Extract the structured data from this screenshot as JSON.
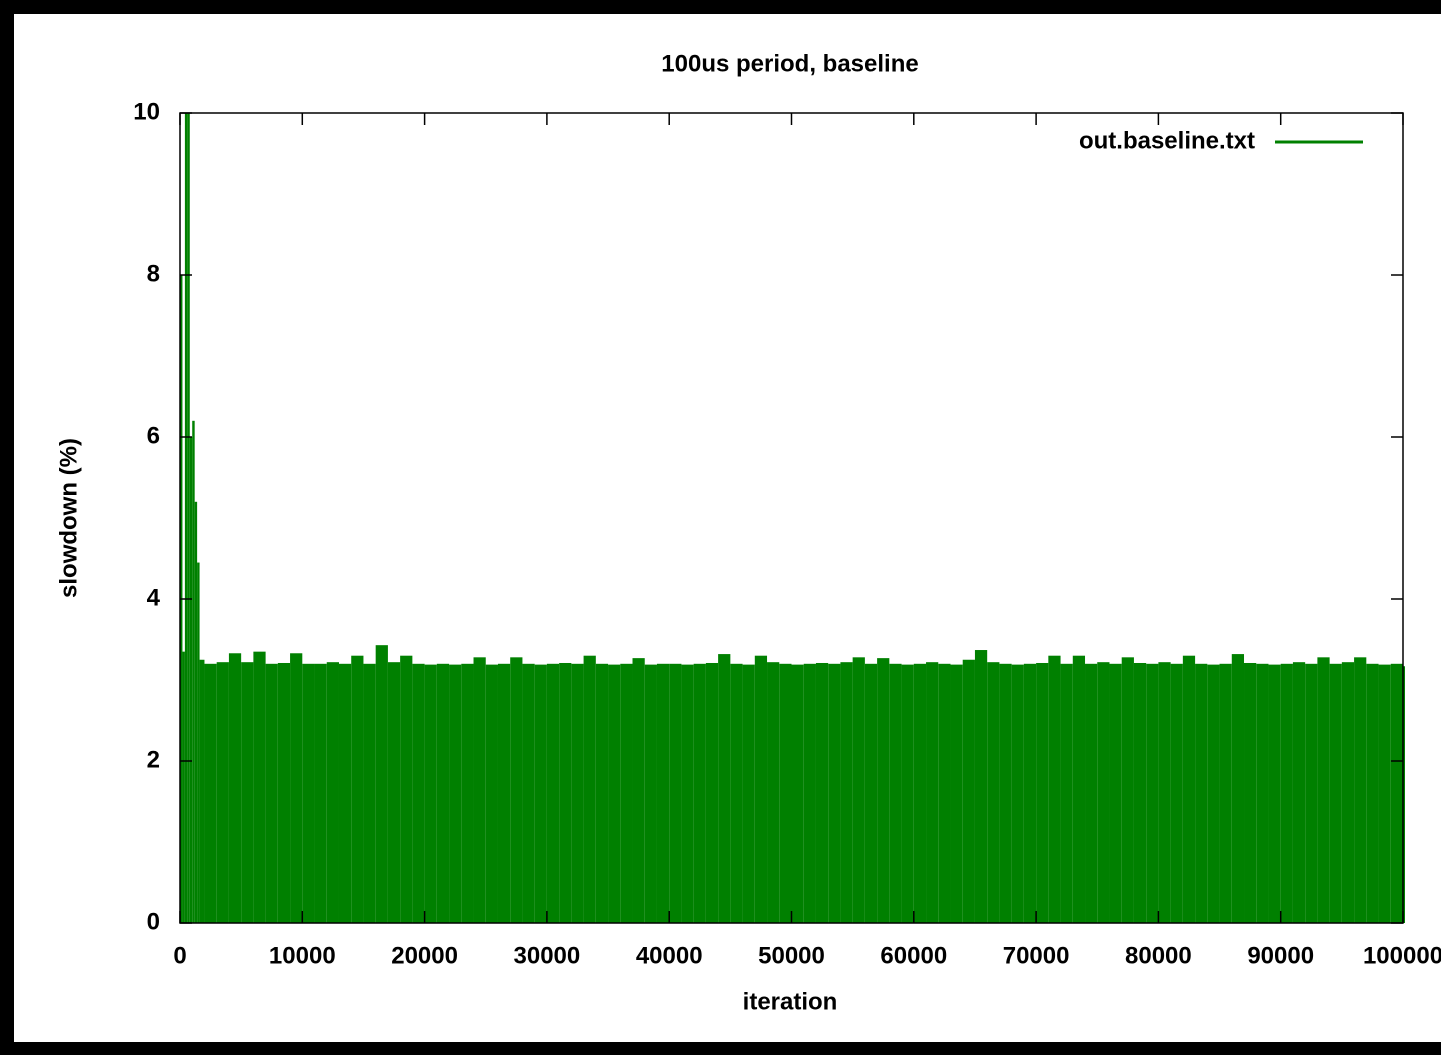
{
  "chart_data": {
    "type": "impulse",
    "title": "100us period, baseline",
    "x_label": "iteration",
    "y_label": "slowdown (%)",
    "x": [
      0,
      200,
      400,
      600,
      800,
      1000,
      1200,
      1400,
      1600,
      2000,
      3000,
      4000,
      5000,
      6000,
      7000,
      8000,
      9000,
      10000,
      11000,
      12000,
      13000,
      14000,
      15000,
      16000,
      17000,
      18000,
      19000,
      20000,
      21000,
      22000,
      23000,
      24000,
      25000,
      26000,
      27000,
      28000,
      29000,
      30000,
      31000,
      32000,
      33000,
      34000,
      35000,
      36000,
      37000,
      38000,
      39000,
      40000,
      41000,
      42000,
      43000,
      44000,
      45000,
      46000,
      47000,
      48000,
      49000,
      50000,
      51000,
      52000,
      53000,
      54000,
      55000,
      56000,
      57000,
      58000,
      59000,
      60000,
      61000,
      62000,
      63000,
      64000,
      65000,
      66000,
      67000,
      68000,
      69000,
      70000,
      71000,
      72000,
      73000,
      74000,
      75000,
      76000,
      77000,
      78000,
      79000,
      80000,
      81000,
      82000,
      83000,
      84000,
      85000,
      86000,
      87000,
      88000,
      89000,
      90000,
      91000,
      92000,
      93000,
      94000,
      95000,
      96000,
      97000,
      98000,
      99000,
      100000
    ],
    "series": [
      {
        "name": "out.baseline.txt",
        "color": "#008000",
        "values": [
          8,
          3.35,
          10,
          10,
          6.0,
          6.2,
          5.2,
          4.45,
          3.25,
          3.2,
          3.22,
          3.33,
          3.22,
          3.35,
          3.2,
          3.21,
          3.33,
          3.2,
          3.2,
          3.22,
          3.2,
          3.3,
          3.2,
          3.43,
          3.22,
          3.3,
          3.2,
          3.19,
          3.2,
          3.19,
          3.2,
          3.28,
          3.19,
          3.2,
          3.28,
          3.2,
          3.19,
          3.2,
          3.21,
          3.2,
          3.3,
          3.2,
          3.19,
          3.2,
          3.27,
          3.19,
          3.2,
          3.2,
          3.19,
          3.2,
          3.21,
          3.32,
          3.2,
          3.19,
          3.3,
          3.22,
          3.2,
          3.19,
          3.2,
          3.21,
          3.2,
          3.22,
          3.28,
          3.2,
          3.27,
          3.2,
          3.19,
          3.2,
          3.22,
          3.2,
          3.19,
          3.25,
          3.37,
          3.22,
          3.2,
          3.19,
          3.2,
          3.21,
          3.3,
          3.2,
          3.3,
          3.2,
          3.22,
          3.2,
          3.28,
          3.21,
          3.2,
          3.22,
          3.2,
          3.3,
          3.2,
          3.19,
          3.2,
          3.32,
          3.21,
          3.2,
          3.19,
          3.2,
          3.22,
          3.2,
          3.28,
          3.2,
          3.22,
          3.28,
          3.2,
          3.19,
          3.2,
          3.17
        ]
      }
    ],
    "xlim": [
      0,
      100000
    ],
    "xticks": [
      0,
      10000,
      20000,
      30000,
      40000,
      50000,
      60000,
      70000,
      80000,
      90000,
      100000
    ],
    "ylim": [
      0,
      10
    ],
    "yticks": [
      0,
      2,
      4,
      6,
      8,
      10
    ],
    "legend": "top right",
    "grid": false
  }
}
